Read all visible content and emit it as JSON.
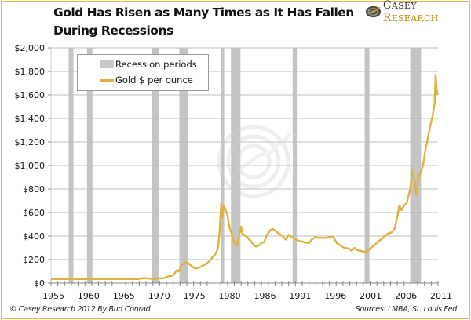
{
  "header": {
    "title_line1": "Gold Has Risen as Many Times as It Has Fallen",
    "title_line2": "During Recessions",
    "logo_word1_initial": "C",
    "logo_word1_rest": "ASEY",
    "logo_word2_initial": "R",
    "logo_word2_rest": "ESEARCH",
    "logo_icon": "casey-research-logo-icon"
  },
  "footer": {
    "copyright": "© Casey Research 2012 By Bud Conrad",
    "sources": "Sources: LMBA, St. Louis Fed"
  },
  "colors": {
    "frame": "#e0b84a",
    "gold_line": "#ddb23e",
    "recession_bar": "#c4c4c4",
    "gridline": "#bfbfbf"
  },
  "chart_data": {
    "type": "line",
    "title": "Gold Has Risen as Many Times as It Has Fallen During Recessions",
    "xlabel": "",
    "ylabel": "",
    "ylim": [
      0,
      2000
    ],
    "xlim": [
      1955,
      2012
    ],
    "grid": true,
    "legend_placement": "top-left",
    "legend": [
      "Recession periods",
      "Gold $ per ounce"
    ],
    "y_ticks": [
      0,
      200,
      400,
      600,
      800,
      1000,
      1200,
      1400,
      1600,
      1800,
      2000
    ],
    "y_tick_labels": [
      "$0",
      "$200",
      "$400",
      "$600",
      "$800",
      "$1,000",
      "$1,200",
      "$1,400",
      "$1,600",
      "$1,800",
      "$2,000"
    ],
    "x_tick_labels": [
      "1955",
      "1960",
      "1965",
      "1970",
      "1975",
      "1980",
      "1986",
      "1991",
      "1996",
      "2001",
      "2006",
      "2011"
    ],
    "recessions": [
      {
        "start": 1957.6,
        "end": 1958.3
      },
      {
        "start": 1960.3,
        "end": 1961.1
      },
      {
        "start": 1969.9,
        "end": 1970.9
      },
      {
        "start": 1973.9,
        "end": 1975.2
      },
      {
        "start": 1980.0,
        "end": 1980.5
      },
      {
        "start": 1981.5,
        "end": 1982.9
      },
      {
        "start": 1990.6,
        "end": 1991.2
      },
      {
        "start": 2001.2,
        "end": 2001.9
      },
      {
        "start": 2007.9,
        "end": 2009.5
      }
    ],
    "series": [
      {
        "name": "Gold $ per ounce",
        "x": [
          1955,
          1960,
          1965,
          1967.9,
          1968.2,
          1969,
          1969.8,
          1970.2,
          1971,
          1971.8,
          1972.3,
          1972.9,
          1973.3,
          1973.5,
          1973.8,
          1974.2,
          1974.6,
          1974.9,
          1975.3,
          1975.8,
          1976.2,
          1976.7,
          1977.2,
          1977.8,
          1978.3,
          1978.8,
          1979.2,
          1979.6,
          1979.85,
          1980.05,
          1980.25,
          1980.45,
          1980.7,
          1980.95,
          1981.3,
          1981.6,
          1982.0,
          1982.4,
          1982.7,
          1983.0,
          1983.2,
          1983.5,
          1983.9,
          1984.4,
          1984.9,
          1985.2,
          1985.6,
          1986.0,
          1986.4,
          1986.8,
          1987.3,
          1987.7,
          1988.1,
          1988.6,
          1989.1,
          1989.6,
          1990.0,
          1990.5,
          1990.9,
          1991.4,
          1991.9,
          1992.5,
          1993.0,
          1993.4,
          1993.9,
          1994.5,
          1995.0,
          1995.6,
          1996.1,
          1996.6,
          1997.1,
          1997.6,
          1998.2,
          1998.8,
          1999.3,
          1999.7,
          2000.1,
          2000.6,
          2001.1,
          2001.6,
          2002.1,
          2002.6,
          2003.1,
          2003.6,
          2004.1,
          2004.6,
          2005.1,
          2005.6,
          2006.0,
          2006.3,
          2006.6,
          2007.0,
          2007.4,
          2007.9,
          2008.2,
          2008.5,
          2008.8,
          2009.1,
          2009.4,
          2009.8,
          2010.1,
          2010.5,
          2010.9,
          2011.2,
          2011.5,
          2011.65,
          2011.8,
          2011.95
        ],
        "values": [
          35,
          35,
          35,
          35,
          40,
          42,
          36,
          35,
          40,
          44,
          58,
          65,
          90,
          110,
          100,
          150,
          170,
          180,
          165,
          140,
          125,
          130,
          145,
          165,
          185,
          220,
          245,
          300,
          450,
          675,
          560,
          660,
          620,
          590,
          470,
          420,
          340,
          320,
          400,
          480,
          420,
          410,
          390,
          360,
          320,
          310,
          320,
          340,
          350,
          410,
          450,
          460,
          440,
          420,
          400,
          370,
          410,
          390,
          380,
          360,
          355,
          345,
          340,
          370,
          390,
          385,
          385,
          385,
          395,
          390,
          340,
          320,
          300,
          295,
          275,
          300,
          280,
          275,
          265,
          270,
          300,
          320,
          350,
          370,
          400,
          420,
          430,
          460,
          560,
          660,
          620,
          660,
          680,
          800,
          960,
          880,
          760,
          880,
          940,
          1000,
          1120,
          1230,
          1350,
          1420,
          1530,
          1770,
          1650,
          1600
        ]
      }
    ]
  }
}
